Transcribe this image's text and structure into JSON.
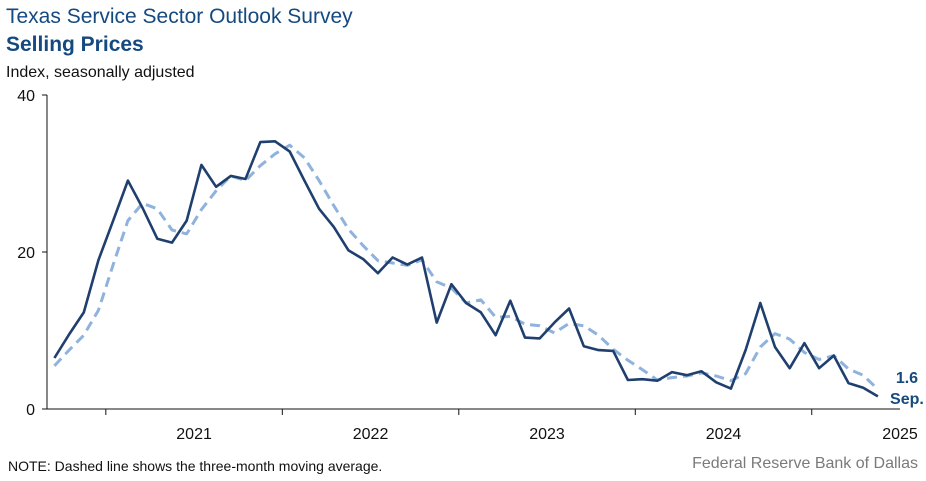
{
  "title": "Texas Service Sector Outlook Survey",
  "subtitle": "Selling Prices",
  "unit_label": "Index, seasonally adjusted",
  "note": "NOTE: Dashed line shows the three-month moving average.",
  "source": "Federal Reserve Bank of Dallas",
  "colors": {
    "series": "#1f3f6e",
    "moving_average": "#8fb3dd",
    "label": "#154a80"
  },
  "chart_data": {
    "type": "line",
    "ylim": [
      0,
      40
    ],
    "y_ticks": [
      0,
      20,
      40
    ],
    "x_tick_labels": [
      "2021",
      "2022",
      "2023",
      "2024",
      "2025"
    ],
    "x_start": "2020-09",
    "x_end": "2025-09",
    "grid": false,
    "series": [
      {
        "values": [
          6.5,
          9.5,
          12.3,
          19.0,
          24.0,
          29.1,
          25.6,
          21.7,
          21.2,
          24.0,
          31.1,
          28.3,
          29.7,
          29.3,
          34.0,
          34.1,
          32.8,
          29.1,
          25.5,
          23.2,
          20.2,
          19.1,
          17.3,
          19.3,
          18.4,
          19.3,
          11.0,
          15.9,
          13.5,
          12.3,
          9.4,
          13.8,
          9.1,
          9.0,
          11.0,
          12.8,
          8.0,
          7.5,
          7.4,
          3.7,
          3.8,
          3.6,
          4.7,
          4.3,
          4.8,
          3.4,
          2.6,
          7.5,
          13.5,
          7.9,
          5.2,
          8.4,
          5.2,
          6.8,
          3.3,
          2.7,
          1.6
        ],
        "end_value_label": "1.6",
        "end_date_label": "Sep."
      },
      {
        "values": [
          5.5,
          7.5,
          9.4,
          12.6,
          18.4,
          24.0,
          26.2,
          25.5,
          22.8,
          22.3,
          25.4,
          27.8,
          29.7,
          29.1,
          31.0,
          32.5,
          33.6,
          32.0,
          29.1,
          25.9,
          22.9,
          20.8,
          18.9,
          18.6,
          18.3,
          19.0,
          16.2,
          15.4,
          13.5,
          13.9,
          11.7,
          11.8,
          10.8,
          10.6,
          9.7,
          10.9,
          10.6,
          9.4,
          7.6,
          6.2,
          5.0,
          3.7,
          4.0,
          4.2,
          4.6,
          4.2,
          3.6,
          4.5,
          7.9,
          9.6,
          8.9,
          7.2,
          6.3,
          6.8,
          5.1,
          4.3,
          2.5
        ]
      }
    ]
  }
}
